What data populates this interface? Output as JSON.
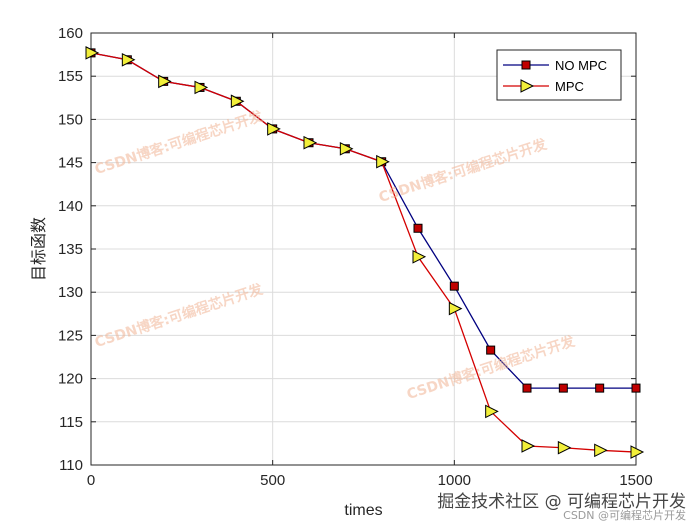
{
  "chart_data": {
    "type": "line",
    "title": "",
    "xlabel": "times",
    "ylabel": "目标函数",
    "xlim": [
      0,
      1500
    ],
    "ylim": [
      110,
      160
    ],
    "xticks": [
      0,
      500,
      1000,
      1500
    ],
    "yticks": [
      110,
      115,
      120,
      125,
      130,
      135,
      140,
      145,
      150,
      155,
      160
    ],
    "grid": true,
    "legend_position": "top-right",
    "series": [
      {
        "name": "NO MPC",
        "color": "#000080",
        "marker": "square",
        "marker_fill": "#c00000",
        "x": [
          0,
          100,
          200,
          300,
          400,
          500,
          600,
          700,
          800,
          900,
          1000,
          1100,
          1200,
          1300,
          1400,
          1500
        ],
        "y": [
          157.7,
          156.9,
          154.4,
          153.7,
          152.1,
          148.9,
          147.3,
          146.6,
          145.1,
          137.4,
          130.7,
          123.3,
          118.9,
          118.9,
          118.9,
          118.9
        ]
      },
      {
        "name": "MPC",
        "color": "#d40000",
        "marker": "triangle-right",
        "marker_fill": "#f2ef3a",
        "x": [
          0,
          100,
          200,
          300,
          400,
          500,
          600,
          700,
          800,
          900,
          1000,
          1100,
          1200,
          1300,
          1400,
          1500
        ],
        "y": [
          157.7,
          156.9,
          154.4,
          153.7,
          152.1,
          148.9,
          147.3,
          146.6,
          145.1,
          134.1,
          128.1,
          116.2,
          112.2,
          112.0,
          111.7,
          111.5
        ]
      }
    ]
  },
  "watermarks": {
    "in_plot": [
      "CSDN博客:可编程芯片开发",
      "CSDN博客:可编程芯片开发",
      "CSDN博客:可编程芯片开发",
      "CSDN博客:可编程芯片开发"
    ],
    "footer_main": "掘金技术社区 @ 可编程芯片开发",
    "footer_sub": "CSDN @可编程芯片开发"
  }
}
